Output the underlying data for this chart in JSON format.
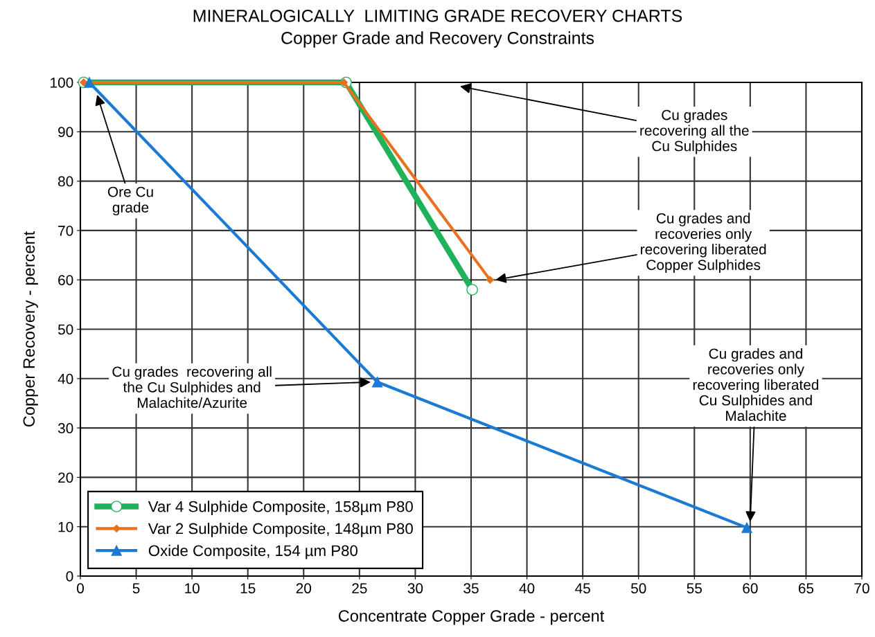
{
  "chart_data": {
    "type": "line",
    "title": "MINERALOGICALLY  LIMITING GRADE RECOVERY CHARTS",
    "subtitle": "Copper Grade and Recovery Constraints",
    "xlabel": "Concentrate Copper Grade - percent",
    "ylabel": "Copper Recovery - percent",
    "series": [
      {
        "name": "Var 4 Sulphide Composite, 158µm P80",
        "color": "#1fb25a",
        "marker": "circle",
        "x": [
          0.3,
          23.8,
          35.1
        ],
        "values": [
          100,
          100,
          58
        ]
      },
      {
        "name": "Var 2 Sulphide Composite, 148µm P80",
        "color": "#e8701f",
        "marker": "diamond",
        "x": [
          0.3,
          23.6,
          36.7
        ],
        "values": [
          100,
          100,
          60
        ]
      },
      {
        "name": "Oxide Composite, 154 µm P80",
        "color": "#1a7ad4",
        "marker": "triangle",
        "x": [
          0.8,
          26.6,
          59.7
        ],
        "values": [
          100,
          39.3,
          9.8
        ]
      }
    ],
    "annotations": [
      {
        "text": "Ore Cu\ngrade",
        "x": 1.5,
        "y": 97.5
      },
      "Cu grades\nrecovering all the\nCu Sulphides",
      {
        "text": "Cu grades and\nrecoveries only\nrecovering liberated\nCopper Sulphides",
        "x": 37.2,
        "y": 60
      },
      {
        "text": "Cu grades  recovering all\nthe Cu Sulphides and\nMalachite/Azurite",
        "x": 26,
        "y": 39.3
      },
      {
        "text": "Cu grades and\nrecoveries only\nrecovering liberated\nCu Sulphides and\nMalachite",
        "x": 60,
        "y": 11
      }
    ],
    "xlim": [
      0,
      70
    ],
    "xticks": [
      0,
      5,
      10,
      15,
      20,
      25,
      30,
      35,
      40,
      45,
      50,
      55,
      60,
      65,
      70
    ],
    "ylim": [
      0,
      100
    ],
    "yticks": [
      0,
      10,
      20,
      30,
      40,
      50,
      60,
      70,
      80,
      90,
      100
    ],
    "grid": true,
    "legend": "bottom left",
    "line_style": "solid"
  }
}
